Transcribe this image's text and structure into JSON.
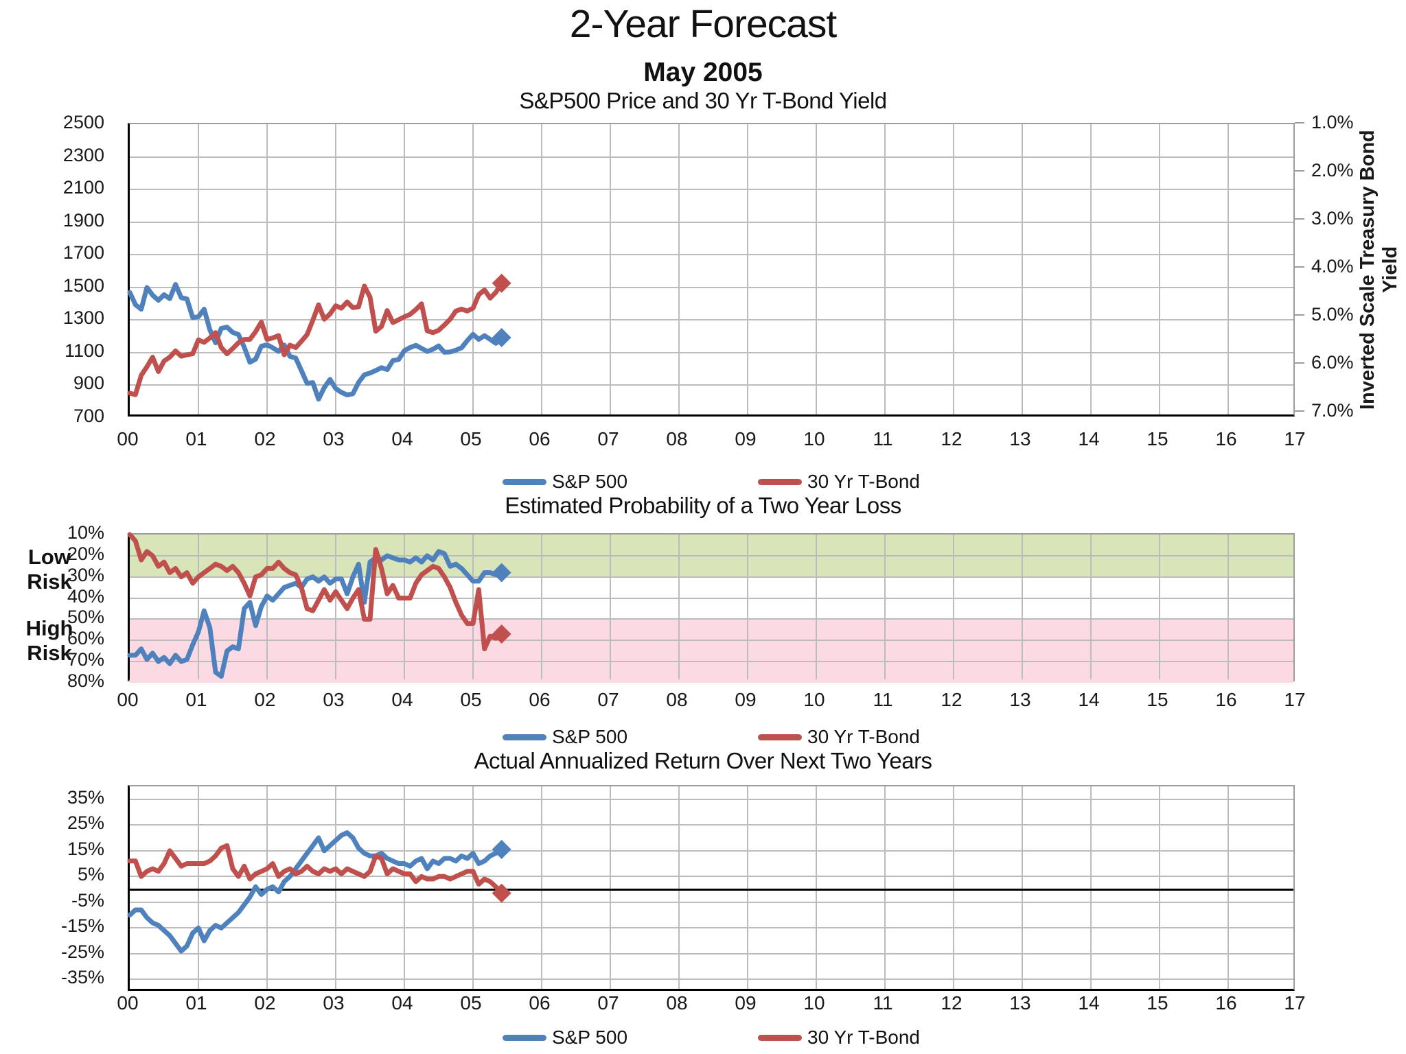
{
  "header": {
    "title": "2-Year Forecast",
    "subtitle": "May 2005"
  },
  "legend": {
    "sp500": "S&P 500",
    "tbond": "30 Yr T-Bond"
  },
  "colors": {
    "sp500": "#4F81BD",
    "tbond": "#C0504D",
    "low_risk_band": "#D7E5B8",
    "high_risk_band": "#FBDAE4",
    "gridline": "#BCBCBC"
  },
  "x_axis": {
    "labels": [
      "00",
      "01",
      "02",
      "03",
      "04",
      "05",
      "06",
      "07",
      "08",
      "09",
      "10",
      "11",
      "12",
      "13",
      "14",
      "15",
      "16",
      "17"
    ]
  },
  "chart_data": [
    {
      "type": "line",
      "title": "S&P500 Price and 30 Yr T-Bond Yield",
      "x_period": "monthly, Dec 1999 - May 2005, plotted on year axis 00-17",
      "y_left": {
        "ticks": [
          "2500",
          "2300",
          "2100",
          "1900",
          "1700",
          "1500",
          "1300",
          "1100",
          "900",
          "700"
        ],
        "range": [
          700,
          2500
        ]
      },
      "y_right": {
        "title": "Inverted Scale Treasury Bond Yield",
        "ticks": [
          "1.0%",
          "2.0%",
          "3.0%",
          "4.0%",
          "5.0%",
          "6.0%",
          "7.0%"
        ],
        "range": [
          1.0,
          7.0
        ],
        "inverted": true
      },
      "series": [
        {
          "name": "S&P 500",
          "axis": "left",
          "color_key": "sp500",
          "end_marker": "diamond",
          "values": [
            1469,
            1394,
            1366,
            1499,
            1452,
            1421,
            1455,
            1431,
            1518,
            1437,
            1429,
            1315,
            1320,
            1366,
            1240,
            1160,
            1249,
            1256,
            1224,
            1211,
            1134,
            1041,
            1060,
            1139,
            1148,
            1130,
            1107,
            1147,
            1077,
            1067,
            990,
            912,
            916,
            815,
            886,
            936,
            880,
            856,
            841,
            848,
            917,
            964,
            975,
            990,
            1008,
            996,
            1051,
            1058,
            1112,
            1131,
            1145,
            1126,
            1107,
            1121,
            1141,
            1102,
            1104,
            1115,
            1130,
            1174,
            1212,
            1181,
            1204,
            1181,
            1157,
            1192
          ]
        },
        {
          "name": "30 Yr T-Bond",
          "axis": "right",
          "color_key": "tbond",
          "end_marker": "diamond",
          "values": [
            6.6,
            6.63,
            6.23,
            6.05,
            5.85,
            6.15,
            5.93,
            5.85,
            5.72,
            5.83,
            5.8,
            5.78,
            5.49,
            5.54,
            5.45,
            5.34,
            5.65,
            5.78,
            5.67,
            5.55,
            5.48,
            5.48,
            5.32,
            5.12,
            5.48,
            5.45,
            5.4,
            5.8,
            5.6,
            5.65,
            5.52,
            5.38,
            5.08,
            4.76,
            5.06,
            4.95,
            4.78,
            4.83,
            4.7,
            4.82,
            4.8,
            4.37,
            4.6,
            5.31,
            5.21,
            4.88,
            5.13,
            5.07,
            5.01,
            4.96,
            4.86,
            4.74,
            5.3,
            5.34,
            5.29,
            5.18,
            5.06,
            4.89,
            4.85,
            4.89,
            4.83,
            4.55,
            4.45,
            4.62,
            4.5,
            4.31
          ]
        }
      ]
    },
    {
      "type": "line",
      "title": "Estimated Probability of a Two Year Loss",
      "y": {
        "ticks": [
          "10%",
          "20%",
          "30%",
          "40%",
          "50%",
          "60%",
          "70%",
          "80%"
        ],
        "range": [
          10,
          80
        ],
        "inverted": true
      },
      "bands": [
        {
          "label": "Low Risk",
          "from": 10,
          "to": 30,
          "color_key": "low_risk_band"
        },
        {
          "label": "High Risk",
          "from": 50,
          "to": 80,
          "color_key": "high_risk_band"
        }
      ],
      "series": [
        {
          "name": "S&P 500",
          "color_key": "sp500",
          "end_marker": "diamond",
          "values": [
            67,
            67,
            64,
            69,
            66,
            70,
            68,
            71,
            67,
            70,
            69,
            62,
            56,
            46,
            54,
            75,
            77,
            65,
            63,
            64,
            45,
            42,
            53,
            44,
            39,
            41,
            38,
            35,
            34,
            33,
            35,
            31,
            30,
            32,
            30,
            33,
            31,
            31,
            38,
            30,
            24,
            42,
            23,
            21,
            22,
            20,
            21,
            22,
            22,
            23,
            21,
            23,
            20,
            22,
            18,
            19,
            25,
            24,
            26,
            29,
            32,
            32,
            28,
            28,
            29,
            28
          ]
        },
        {
          "name": "30 Yr T-Bond",
          "color_key": "tbond",
          "end_marker": "diamond",
          "values": [
            10,
            13,
            22,
            18,
            20,
            25,
            23,
            28,
            26,
            30,
            28,
            33,
            30,
            28,
            26,
            24,
            25,
            27,
            25,
            28,
            33,
            39,
            30,
            29,
            26,
            26,
            23,
            26,
            28,
            29,
            35,
            45,
            46,
            41,
            36,
            41,
            37,
            41,
            45,
            40,
            36,
            50,
            50,
            17,
            26,
            38,
            34,
            40,
            40,
            40,
            33,
            29,
            27,
            25,
            26,
            30,
            35,
            42,
            48,
            52,
            52,
            36,
            64,
            58,
            59,
            57
          ]
        }
      ]
    },
    {
      "type": "line",
      "title": "Actual Annualized Return Over Next Two Years",
      "y": {
        "ticks": [
          "35%",
          "25%",
          "15%",
          "5%",
          "-5%",
          "-15%",
          "-25%",
          "-35%"
        ],
        "range": [
          -40,
          40
        ],
        "zero_line": true
      },
      "series": [
        {
          "name": "S&P 500",
          "color_key": "sp500",
          "end_marker": "diamond",
          "values": [
            -10,
            -8,
            -8,
            -11,
            -13,
            -14,
            -16,
            -18,
            -21,
            -24,
            -22,
            -17,
            -15,
            -20,
            -16,
            -14,
            -15,
            -13,
            -11,
            -9,
            -6,
            -3,
            1,
            -2,
            0,
            1,
            -1,
            3,
            5,
            8,
            11,
            14,
            17,
            20,
            15,
            17,
            19,
            21,
            22,
            20,
            16,
            14,
            13,
            13,
            14,
            12,
            11,
            10,
            10,
            9,
            11,
            12,
            8,
            11,
            10,
            12,
            12,
            11,
            13,
            12,
            14,
            10,
            11,
            13,
            14,
            15.5
          ]
        },
        {
          "name": "30 Yr T-Bond",
          "color_key": "tbond",
          "end_marker": "diamond",
          "values": [
            11,
            11,
            5,
            7,
            8,
            7,
            10,
            15,
            12,
            9,
            10,
            10,
            10,
            10,
            11,
            13,
            16,
            17,
            8,
            5,
            9,
            4,
            6,
            7,
            8,
            10,
            5,
            7,
            8,
            6,
            7,
            9,
            7,
            6,
            8,
            7,
            8,
            6,
            8,
            7,
            6,
            5,
            7,
            13,
            12,
            6,
            8,
            7,
            6,
            6,
            3,
            5,
            4,
            4,
            5,
            5,
            4,
            5,
            6,
            7,
            7,
            2,
            4,
            3,
            1,
            -1.5
          ]
        }
      ]
    }
  ]
}
